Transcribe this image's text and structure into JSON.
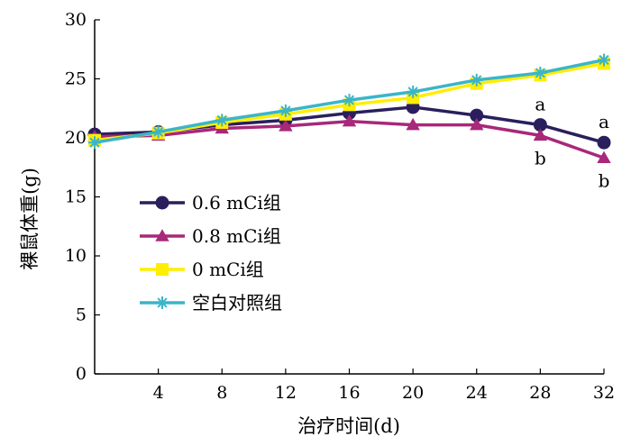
{
  "chart_data": {
    "type": "line",
    "xlabel": "治疗时间(d)",
    "ylabel": "裸鼠体重(g)",
    "xlim": [
      0,
      32
    ],
    "ylim": [
      0,
      30
    ],
    "xticks": [
      4,
      8,
      12,
      16,
      20,
      24,
      28,
      32
    ],
    "yticks": [
      0,
      5,
      10,
      15,
      20,
      25,
      30
    ],
    "grid": false,
    "legend_position": "center-left",
    "x": [
      0,
      4,
      8,
      12,
      16,
      20,
      24,
      28,
      32
    ],
    "series": [
      {
        "name": "0.6 mCi组",
        "color": "#2a1f5c",
        "marker": "circle",
        "values": [
          20.3,
          20.5,
          21.1,
          21.5,
          22.1,
          22.6,
          21.9,
          21.1,
          19.6
        ]
      },
      {
        "name": "0.8 mCi组",
        "color": "#a8287a",
        "marker": "triangle",
        "values": [
          20.1,
          20.2,
          20.8,
          21.0,
          21.4,
          21.1,
          21.1,
          20.2,
          18.3
        ]
      },
      {
        "name": "0 mCi组",
        "color": "#ffee00",
        "marker": "square",
        "values": [
          19.8,
          20.4,
          21.3,
          22.0,
          22.8,
          23.4,
          24.6,
          25.3,
          26.3
        ]
      },
      {
        "name": "空白对照组",
        "color": "#3bb5c9",
        "marker": "asterisk",
        "values": [
          19.6,
          20.5,
          21.5,
          22.3,
          23.2,
          23.9,
          24.9,
          25.5,
          26.6
        ]
      }
    ],
    "annotations": [
      {
        "text": "a",
        "x": 28,
        "y": 21.1,
        "near_series": 0
      },
      {
        "text": "b",
        "x": 28,
        "y": 20.2,
        "near_series": 1
      },
      {
        "text": "a",
        "x": 32,
        "y": 19.6,
        "near_series": 0
      },
      {
        "text": "b",
        "x": 32,
        "y": 18.3,
        "near_series": 1
      }
    ]
  }
}
